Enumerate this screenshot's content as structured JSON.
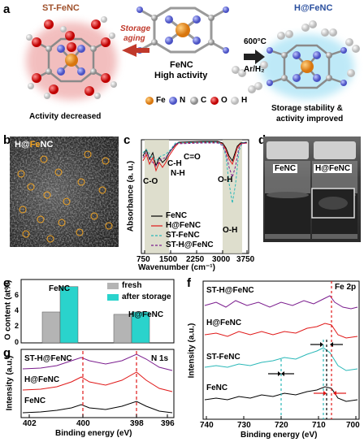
{
  "panel_a": {
    "letter": "a",
    "left_title": "ST-FeNC",
    "center_title": "FeNC",
    "center_subtitle": "High activity",
    "right_title": "H@FeNC",
    "arrow_left_1": "Storage",
    "arrow_left_2": "aging",
    "arrow_right_1": "600°C",
    "arrow_right_2": "Ar/H₂",
    "left_caption": "Activity decreased",
    "right_caption_1": "Storage stability &",
    "right_caption_2": "activity improved",
    "legend": [
      {
        "label": "Fe",
        "color": "#e98c1c"
      },
      {
        "label": "N",
        "color": "#6670d8"
      },
      {
        "label": "C",
        "color": "#a0a0a0"
      },
      {
        "label": "O",
        "color": "#e02020"
      },
      {
        "label": "H",
        "color": "#e8e8e8"
      }
    ]
  },
  "panel_b": {
    "letter": "b",
    "label_prefix": "H@",
    "label_fe": "Fe",
    "label_suffix": "NC"
  },
  "panel_c": {
    "letter": "c",
    "ylabel": "Absorbance (a. u.)",
    "xlabel": "Wavenumber (cm⁻¹)",
    "ticks": [
      "750",
      "1500",
      "2250",
      "3000",
      "3750"
    ],
    "annotations": [
      "C=O",
      "C-H",
      "N-H",
      "C-O",
      "O-H",
      "O-H"
    ],
    "legend": [
      "FeNC",
      "H@FeNC",
      "ST-FeNC",
      "ST-H@FeNC"
    ]
  },
  "panel_d": {
    "letter": "d",
    "left_label": "FeNC",
    "right_label": "H@FeNC"
  },
  "panel_e": {
    "letter": "e",
    "ylabel": "O content (at%)",
    "yticks": [
      "0",
      "2",
      "4",
      "6"
    ],
    "legend": [
      "fresh",
      "after storage"
    ],
    "group_labels": [
      "FeNC",
      "H@FeNC"
    ],
    "colors": {
      "fresh": "#b4b4b4",
      "after_storage": "#2ad3cc"
    }
  },
  "panel_f": {
    "letter": "f",
    "title": "Fe 2p",
    "ylabel": "Intensity (a.u.)",
    "xlabel": "Binding energy (eV)",
    "ticks": [
      "740",
      "730",
      "720",
      "710",
      "700"
    ],
    "series_labels": [
      "ST-H@FeNC",
      "H@FeNC",
      "ST-FeNC",
      "FeNC"
    ]
  },
  "panel_g": {
    "letter": "g",
    "title": "N 1s",
    "ylabel": "Intensity (a.u.)",
    "xlabel": "Binding energy (eV)",
    "ticks": [
      "402",
      "400",
      "398",
      "396"
    ],
    "series_labels": [
      "ST-H@FeNC",
      "H@FeNC",
      "FeNC"
    ]
  },
  "chart_data": [
    {
      "type": "bar",
      "panel": "e",
      "categories": [
        "FeNC",
        "H@FeNC"
      ],
      "series": [
        {
          "name": "fresh",
          "values": [
            3.9,
            3.6
          ]
        },
        {
          "name": "after storage",
          "values": [
            7.1,
            3.9
          ]
        }
      ],
      "ylabel": "O content (at%)",
      "ylim": [
        0,
        8
      ]
    },
    {
      "type": "line",
      "panel": "g",
      "title": "N 1s",
      "xlabel": "Binding energy (eV)",
      "ylabel": "Intensity (a.u.)",
      "xlim": [
        403.5,
        395
      ],
      "series": [
        {
          "name": "ST-H@FeNC",
          "color": "#7b1d8e",
          "peaks": [
            400.1,
            397.6
          ]
        },
        {
          "name": "H@FeNC",
          "color": "#e01818",
          "peaks": [
            400.1,
            397.6
          ]
        },
        {
          "name": "FeNC",
          "color": "#000000",
          "peaks": [
            400.1,
            397.6
          ]
        }
      ],
      "reference_lines": [
        400.0,
        397.6
      ]
    },
    {
      "type": "line",
      "panel": "f",
      "title": "Fe 2p",
      "xlabel": "Binding energy (eV)",
      "ylabel": "Intensity (a.u.)",
      "xlim": [
        740,
        700
      ],
      "series": [
        {
          "name": "ST-H@FeNC",
          "color": "#7b1d8e"
        },
        {
          "name": "H@FeNC",
          "color": "#e01818"
        },
        {
          "name": "ST-FeNC",
          "color": "#2ab8b8"
        },
        {
          "name": "FeNC",
          "color": "#000000"
        }
      ],
      "reference_lines": [
        723.5,
        710.2,
        709.5,
        708.5
      ]
    },
    {
      "type": "line",
      "panel": "c",
      "xlabel": "Wavenumber (cm⁻¹)",
      "ylabel": "Absorbance (a. u.)",
      "xlim": [
        750,
        3750
      ],
      "series": [
        {
          "name": "FeNC",
          "color": "#000000"
        },
        {
          "name": "H@FeNC",
          "color": "#e01818"
        },
        {
          "name": "ST-FeNC",
          "color": "#2ab8b8"
        },
        {
          "name": "ST-H@FeNC",
          "color": "#7b1d8e"
        }
      ]
    }
  ]
}
